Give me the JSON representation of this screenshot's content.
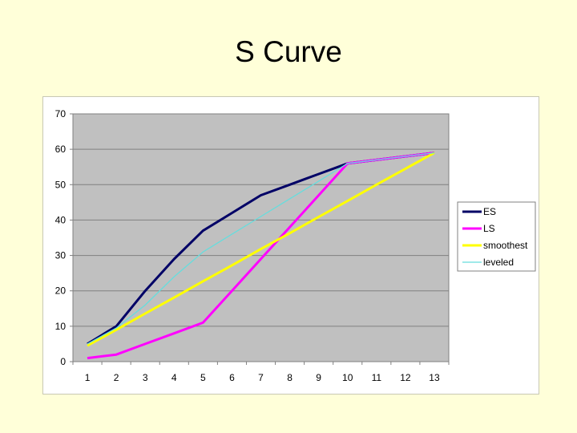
{
  "slide": {
    "title": "S Curve",
    "background": "#ffffd9"
  },
  "chart_data": {
    "type": "line",
    "title": "S Curve",
    "xlabel": "",
    "ylabel": "",
    "x": [
      1,
      2,
      3,
      4,
      5,
      6,
      7,
      8,
      9,
      10,
      11,
      12,
      13
    ],
    "ylim": [
      0,
      70
    ],
    "yticks": [
      0,
      10,
      20,
      30,
      40,
      50,
      60,
      70
    ],
    "grid": true,
    "plot_background": "#c0c0c0",
    "legend_position": "right",
    "series": [
      {
        "name": "ES",
        "color": "#000066",
        "width": 3,
        "values": [
          5,
          10,
          20,
          29,
          37,
          42,
          47,
          50,
          53,
          56,
          57,
          58,
          59
        ]
      },
      {
        "name": "LS",
        "color": "#ff00ff",
        "width": 3,
        "values": [
          1,
          2,
          5,
          8,
          11,
          20,
          29,
          38,
          47,
          56,
          57,
          58,
          59
        ]
      },
      {
        "name": "smoothest",
        "color": "#ffff00",
        "width": 3,
        "values": [
          4.5,
          9,
          13.6,
          18.1,
          22.7,
          27.2,
          31.8,
          36.3,
          40.9,
          45.4,
          50,
          54.5,
          59
        ]
      },
      {
        "name": "leveled",
        "color": "#66dddd",
        "width": 1.3,
        "values": [
          5,
          9.5,
          16,
          24,
          31,
          36,
          41,
          46,
          51,
          56,
          57,
          58,
          59
        ]
      }
    ]
  }
}
